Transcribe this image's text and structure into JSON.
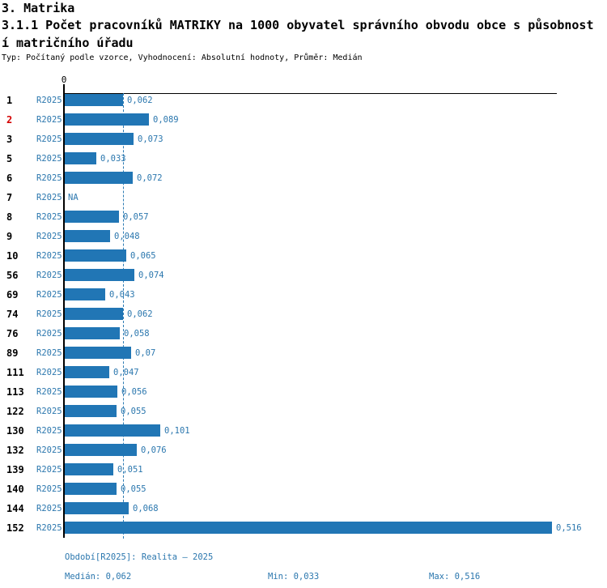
{
  "header": {
    "title": "3. Matrika",
    "subtitle_lines": [
      "3.1.1 Počet pracovníků MATRIKY na 1000 obyvatel správního obvodu obce s působnost",
      "í matričního úřadu"
    ],
    "meta": "Typ: Počítaný podle vzorce, Vyhodnocení: Absolutní hodnoty, Průměr: Medián"
  },
  "axis": {
    "zero_label": "0"
  },
  "footer": {
    "period": "Období[R2025]: Realita – 2025",
    "median": "Medián: 0,062",
    "min": "Min: 0,033",
    "max": "Max: 0,516"
  },
  "colors": {
    "bar_blue": "#2176b5",
    "text_blue": "#2b77ae",
    "highlight_red": "#d40000",
    "axis_black": "#000000"
  },
  "chart_data": {
    "type": "bar",
    "orientation": "horizontal",
    "title": "3.1.1 Počet pracovníků MATRIKY na 1000 obyvatel správního obvodu obce s působností matričního úřadu",
    "series_label": "R2025",
    "xlim": [
      0,
      0.52
    ],
    "grid": false,
    "median_line_value": 0.062,
    "median": 0.062,
    "min": 0.033,
    "max": 0.516,
    "categories": [
      "1",
      "2",
      "3",
      "5",
      "6",
      "7",
      "8",
      "9",
      "10",
      "56",
      "69",
      "74",
      "76",
      "89",
      "111",
      "113",
      "122",
      "130",
      "132",
      "139",
      "140",
      "144",
      "152"
    ],
    "rows": [
      {
        "id": "1",
        "display": "0,062",
        "value": 0.062,
        "highlight": false
      },
      {
        "id": "2",
        "display": "0,089",
        "value": 0.089,
        "highlight": true
      },
      {
        "id": "3",
        "display": "0,073",
        "value": 0.073,
        "highlight": false
      },
      {
        "id": "5",
        "display": "0,033",
        "value": 0.033,
        "highlight": false
      },
      {
        "id": "6",
        "display": "0,072",
        "value": 0.072,
        "highlight": false
      },
      {
        "id": "7",
        "display": "NA",
        "value": null,
        "highlight": false
      },
      {
        "id": "8",
        "display": "0,057",
        "value": 0.057,
        "highlight": false
      },
      {
        "id": "9",
        "display": "0,048",
        "value": 0.048,
        "highlight": false
      },
      {
        "id": "10",
        "display": "0,065",
        "value": 0.065,
        "highlight": false
      },
      {
        "id": "56",
        "display": "0,074",
        "value": 0.074,
        "highlight": false
      },
      {
        "id": "69",
        "display": "0,043",
        "value": 0.043,
        "highlight": false
      },
      {
        "id": "74",
        "display": "0,062",
        "value": 0.062,
        "highlight": false
      },
      {
        "id": "76",
        "display": "0,058",
        "value": 0.058,
        "highlight": false
      },
      {
        "id": "89",
        "display": "0,07",
        "value": 0.07,
        "highlight": false
      },
      {
        "id": "111",
        "display": "0,047",
        "value": 0.047,
        "highlight": false
      },
      {
        "id": "113",
        "display": "0,056",
        "value": 0.056,
        "highlight": false
      },
      {
        "id": "122",
        "display": "0,055",
        "value": 0.055,
        "highlight": false
      },
      {
        "id": "130",
        "display": "0,101",
        "value": 0.101,
        "highlight": false
      },
      {
        "id": "132",
        "display": "0,076",
        "value": 0.076,
        "highlight": false
      },
      {
        "id": "139",
        "display": "0,051",
        "value": 0.051,
        "highlight": false
      },
      {
        "id": "140",
        "display": "0,055",
        "value": 0.055,
        "highlight": false
      },
      {
        "id": "144",
        "display": "0,068",
        "value": 0.068,
        "highlight": false
      },
      {
        "id": "152",
        "display": "0,516",
        "value": 0.516,
        "highlight": false
      }
    ]
  }
}
